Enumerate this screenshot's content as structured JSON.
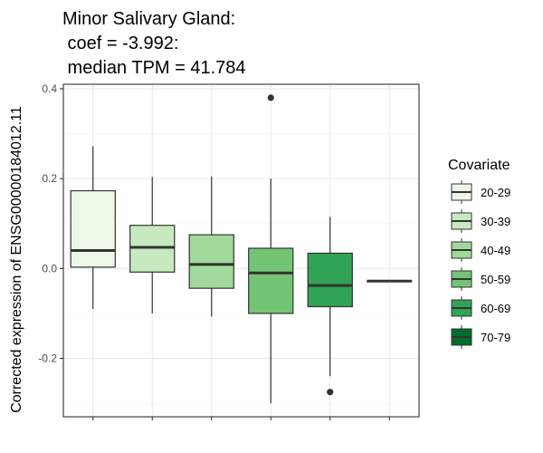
{
  "chart_data": {
    "type": "box",
    "title_lines": [
      "Minor Salivary Gland:",
      " coef = -3.992:",
      " median TPM = 41.784"
    ],
    "ylabel": "Corrected expression of ENSG00000184012.11",
    "xlabel": "",
    "ylim": [
      -0.33,
      0.41
    ],
    "yticks": [
      -0.2,
      0.0,
      0.2,
      0.4
    ],
    "ytick_labels": [
      "-0.2",
      "0.0",
      "0.2",
      "0.4"
    ],
    "grid": true,
    "legend": {
      "title": "Covariate",
      "position": "right"
    },
    "series": [
      {
        "name": "20-29",
        "color": "#edf8e9",
        "whisker_low": -0.09,
        "q1": 0.003,
        "median": 0.04,
        "q3": 0.173,
        "whisker_high": 0.272,
        "outliers": []
      },
      {
        "name": "30-39",
        "color": "#c7e9c0",
        "whisker_low": -0.1,
        "q1": -0.008,
        "median": 0.047,
        "q3": 0.096,
        "whisker_high": 0.204,
        "outliers": []
      },
      {
        "name": "40-49",
        "color": "#a1d99b",
        "whisker_low": -0.107,
        "q1": -0.044,
        "median": 0.009,
        "q3": 0.075,
        "whisker_high": 0.205,
        "outliers": []
      },
      {
        "name": "50-59",
        "color": "#74c476",
        "whisker_low": -0.3,
        "q1": -0.1,
        "median": -0.01,
        "q3": 0.045,
        "whisker_high": 0.2,
        "outliers": [
          0.38
        ]
      },
      {
        "name": "60-69",
        "color": "#31a354",
        "whisker_low": -0.24,
        "q1": -0.085,
        "median": -0.038,
        "q3": 0.034,
        "whisker_high": 0.115,
        "outliers": [
          -0.275
        ]
      },
      {
        "name": "70-79",
        "color": "#006d2c",
        "whisker_low": -0.028,
        "q1": -0.028,
        "median": -0.028,
        "q3": -0.028,
        "whisker_high": -0.028,
        "outliers": []
      }
    ]
  }
}
